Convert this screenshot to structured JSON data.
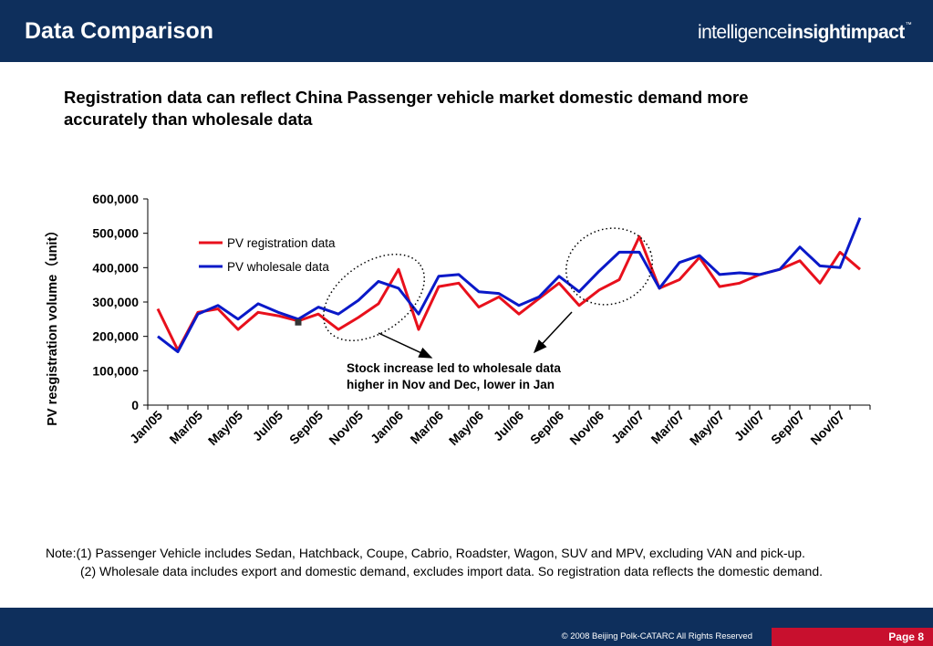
{
  "header": {
    "title": "Data Comparison",
    "brand": {
      "part1": "intelligence",
      "part2": "insight",
      "part3": "impact",
      "mark": "™"
    }
  },
  "headline": {
    "line1": "Registration  data can reflect China Passenger vehicle market domestic demand more",
    "line2": "accurately than  wholesale data"
  },
  "annotation": {
    "line1": "Stock increase led to wholesale data",
    "line2": "higher in Nov and Dec, lower in Jan"
  },
  "notes": {
    "line1": "Note:(1) Passenger Vehicle includes Sedan, Hatchback, Coupe, Cabrio, Roadster, Wagon, SUV and MPV, excluding VAN and pick-up.",
    "line2": "(2) Wholesale data includes export and domestic demand, excludes import data. So registration data reflects the domestic demand."
  },
  "footer": {
    "copyright": "© 2008  Beijing Polk-CATARC  All Rights Reserved",
    "page": "Page 8"
  },
  "colors": {
    "header_bg": "#0e2f5c",
    "registration": "#e8101c",
    "wholesale": "#0a19c8",
    "page_box": "#c8102e"
  },
  "chart_data": {
    "type": "line",
    "ylabel": "PV resgistration volume（unit）",
    "ylim": [
      0,
      600000
    ],
    "yticks": [
      "0",
      "100,000",
      "200,000",
      "300,000",
      "400,000",
      "500,000",
      "600,000"
    ],
    "x_tick_labels": [
      "Jan/05",
      "Mar/05",
      "May/05",
      "Jul/05",
      "Sep/05",
      "Nov/05",
      "Jan/06",
      "Mar/06",
      "May/06",
      "Jul/06",
      "Sep/06",
      "Nov/06",
      "Jan/07",
      "Mar/07",
      "May/07",
      "Jul/07",
      "Sep/07",
      "Nov/07"
    ],
    "legend_position": "top-left",
    "grid": false,
    "x": [
      "Jan/05",
      "Feb/05",
      "Mar/05",
      "Apr/05",
      "May/05",
      "Jun/05",
      "Jul/05",
      "Aug/05",
      "Sep/05",
      "Oct/05",
      "Nov/05",
      "Dec/05",
      "Jan/06",
      "Feb/06",
      "Mar/06",
      "Apr/06",
      "May/06",
      "Jun/06",
      "Jul/06",
      "Aug/06",
      "Sep/06",
      "Oct/06",
      "Nov/06",
      "Dec/06",
      "Jan/07",
      "Feb/07",
      "Mar/07",
      "Apr/07",
      "May/07",
      "Jun/07",
      "Jul/07",
      "Aug/07",
      "Sep/07",
      "Oct/07",
      "Nov/07",
      "Dec/07"
    ],
    "series": [
      {
        "name": "PV registration data",
        "values": [
          280000,
          160000,
          270000,
          280000,
          220000,
          270000,
          260000,
          245000,
          265000,
          220000,
          255000,
          295000,
          395000,
          220000,
          345000,
          355000,
          285000,
          315000,
          265000,
          310000,
          355000,
          290000,
          335000,
          365000,
          490000,
          340000,
          365000,
          430000,
          345000,
          355000,
          380000,
          395000,
          420000,
          355000,
          445000,
          395000
        ]
      },
      {
        "name": "PV wholesale data",
        "values": [
          200000,
          155000,
          265000,
          290000,
          250000,
          295000,
          270000,
          250000,
          285000,
          265000,
          305000,
          360000,
          340000,
          265000,
          375000,
          380000,
          330000,
          325000,
          290000,
          315000,
          375000,
          330000,
          390000,
          445000,
          445000,
          340000,
          415000,
          435000,
          380000,
          385000,
          380000,
          395000,
          460000,
          405000,
          400000,
          545000
        ]
      }
    ]
  }
}
